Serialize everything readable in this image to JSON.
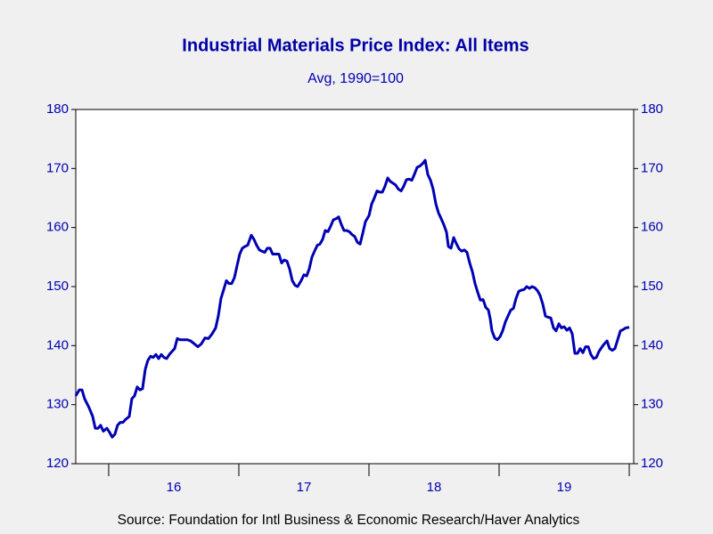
{
  "chart_data": {
    "type": "line",
    "title": "Industrial Materials Price Index: All Items",
    "subtitle": "Avg, 1990=100",
    "source": "Source:  Foundation for Intl Business & Economic Research/Haver Analytics",
    "xlim": [
      2015.747,
      2020.034
    ],
    "xticks": [
      2016,
      2017,
      2018,
      2019,
      2020
    ],
    "xlabels": [
      {
        "value": 2016.5,
        "label": "16"
      },
      {
        "value": 2017.5,
        "label": "17"
      },
      {
        "value": 2018.5,
        "label": "18"
      },
      {
        "value": 2019.5,
        "label": "19"
      }
    ],
    "ylim": [
      120,
      180
    ],
    "yticks": [
      120,
      130,
      140,
      150,
      160,
      170,
      180
    ],
    "y2lim": [
      120,
      180
    ],
    "y2ticks": [
      120,
      130,
      140,
      150,
      160,
      170,
      180
    ],
    "x": [
      2015.747,
      2015.774,
      2015.795,
      2015.815,
      2015.849,
      2015.877,
      2015.897,
      2015.918,
      2015.938,
      2015.959,
      2015.986,
      2016.007,
      2016.027,
      2016.048,
      2016.068,
      2016.089,
      2016.11,
      2016.13,
      2016.158,
      2016.178,
      2016.199,
      2016.219,
      2016.24,
      2016.26,
      2016.281,
      2016.301,
      2016.322,
      2016.342,
      2016.363,
      2016.384,
      2016.404,
      2016.425,
      2016.445,
      2016.466,
      2016.486,
      2016.507,
      2016.527,
      2016.548,
      2016.575,
      2016.603,
      2016.63,
      2016.658,
      2016.685,
      2016.712,
      2016.74,
      2016.767,
      2016.795,
      2016.822,
      2016.842,
      2016.863,
      2016.884,
      2016.904,
      2016.925,
      2016.945,
      2016.966,
      2016.986,
      2017.007,
      2017.027,
      2017.048,
      2017.068,
      2017.096,
      2017.116,
      2017.137,
      2017.158,
      2017.178,
      2017.199,
      2017.219,
      2017.24,
      2017.26,
      2017.288,
      2017.308,
      2017.329,
      2017.349,
      2017.37,
      2017.39,
      2017.411,
      2017.432,
      2017.452,
      2017.479,
      2017.5,
      2017.521,
      2017.541,
      2017.562,
      2017.582,
      2017.603,
      2017.623,
      2017.644,
      2017.664,
      2017.685,
      2017.705,
      2017.726,
      2017.747,
      2017.767,
      2017.788,
      2017.808,
      2017.829,
      2017.849,
      2017.87,
      2017.89,
      2017.911,
      2017.932,
      2017.952,
      2017.973,
      2018.0,
      2018.021,
      2018.041,
      2018.062,
      2018.082,
      2018.103,
      2018.123,
      2018.144,
      2018.164,
      2018.185,
      2018.205,
      2018.226,
      2018.247,
      2018.267,
      2018.288,
      2018.308,
      2018.329,
      2018.349,
      2018.37,
      2018.39,
      2018.411,
      2018.432,
      2018.452,
      2018.473,
      2018.493,
      2018.514,
      2018.534,
      2018.555,
      2018.575,
      2018.596,
      2018.61,
      2018.63,
      2018.651,
      2018.671,
      2018.692,
      2018.712,
      2018.733,
      2018.753,
      2018.774,
      2018.795,
      2018.815,
      2018.836,
      2018.856,
      2018.877,
      2018.897,
      2018.918,
      2018.932,
      2018.945,
      2018.966,
      2018.986,
      2019.007,
      2019.027,
      2019.048,
      2019.068,
      2019.089,
      2019.11,
      2019.13,
      2019.151,
      2019.171,
      2019.192,
      2019.212,
      2019.233,
      2019.253,
      2019.274,
      2019.295,
      2019.315,
      2019.336,
      2019.356,
      2019.377,
      2019.397,
      2019.418,
      2019.438,
      2019.459,
      2019.479,
      2019.5,
      2019.521,
      2019.541,
      2019.562,
      2019.582,
      2019.603,
      2019.623,
      2019.644,
      2019.664,
      2019.685,
      2019.705,
      2019.726,
      2019.747,
      2019.767,
      2019.788,
      2019.808,
      2019.829,
      2019.849,
      2019.87,
      2019.89,
      2019.911,
      2019.932,
      2019.952,
      2019.973,
      2020.0
    ],
    "series": [
      {
        "name": "Industrial Materials Price Index: All Items",
        "color": "#0000b4",
        "values": [
          131.5,
          132.5,
          132.5,
          131,
          129.5,
          128,
          126,
          126,
          126.5,
          125.5,
          126,
          125.3,
          124.5,
          125,
          126.5,
          127,
          127,
          127.5,
          128,
          131,
          131.5,
          133,
          132.5,
          132.7,
          136,
          137.5,
          138.2,
          138,
          138.5,
          137.8,
          138.5,
          138,
          137.8,
          138.5,
          139,
          139.5,
          141.2,
          141,
          141,
          141,
          140.8,
          140.3,
          139.8,
          140.3,
          141.3,
          141.2,
          142,
          143,
          145,
          148,
          149.5,
          151,
          150.5,
          150.5,
          151.5,
          153.5,
          155.5,
          156.5,
          156.8,
          157,
          158.7,
          158,
          157,
          156.2,
          156,
          155.8,
          156.5,
          156.5,
          155.5,
          155.5,
          155.5,
          154,
          154.5,
          154.3,
          153,
          151,
          150.2,
          150,
          151,
          152,
          151.8,
          153,
          155,
          156,
          157,
          157.2,
          158,
          159.5,
          159.3,
          160.2,
          161.3,
          161.5,
          161.8,
          160.5,
          159.5,
          159.5,
          159.3,
          158.8,
          158.5,
          157.5,
          157.2,
          159,
          161,
          162,
          164,
          165,
          166.2,
          166,
          166,
          167,
          168.4,
          167.8,
          167.5,
          167.2,
          166.5,
          166.2,
          167,
          168.1,
          168.2,
          168,
          169,
          170.2,
          170.4,
          170.8,
          171.4,
          169,
          168,
          166.5,
          164,
          162.5,
          161.5,
          160.5,
          159.2,
          156.8,
          156.5,
          158.3,
          157.3,
          156.4,
          156,
          156.2,
          155.8,
          154,
          152.5,
          150.5,
          149,
          147.7,
          147.8,
          146.5,
          146,
          144.5,
          142.5,
          141.3,
          141,
          141.5,
          142.5,
          144,
          145,
          146,
          146.3,
          148,
          149.2,
          149.4,
          149.5,
          150,
          149.7,
          150,
          149.8,
          149.3,
          148.5,
          147,
          145,
          144.8,
          144.7,
          143,
          142.5,
          143.7,
          143,
          143.2,
          142.6,
          143,
          142,
          138.7,
          138.7,
          139.5,
          138.8,
          139.8,
          139.8,
          138.5,
          137.8,
          138,
          139,
          139.7,
          140.3,
          140.8,
          139.5,
          139.2,
          139.5,
          141,
          142.5,
          142.7,
          143,
          143.1
        ]
      }
    ]
  }
}
